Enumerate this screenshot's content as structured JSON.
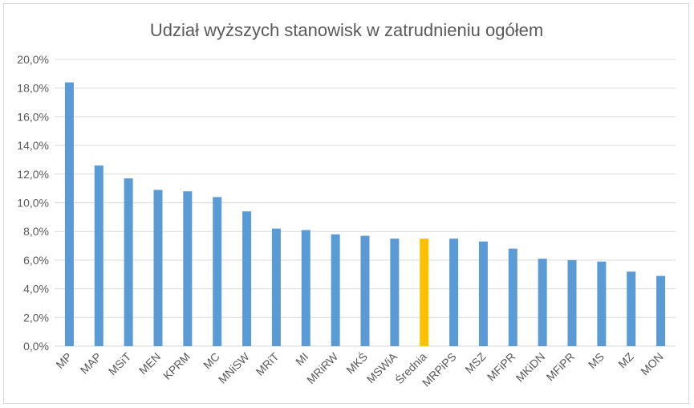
{
  "chart_data": {
    "type": "bar",
    "title": "Udział wyższych stanowisk w zatrudnieniu ogółem",
    "xlabel": "",
    "ylabel": "",
    "ylim": [
      0,
      20
    ],
    "yticks": [
      "0,0%",
      "2,0%",
      "4,0%",
      "6,0%",
      "8,0%",
      "10,0%",
      "12,0%",
      "14,0%",
      "16,0%",
      "18,0%",
      "20,0%"
    ],
    "grid": true,
    "legend": "none",
    "categories": [
      "MP",
      "MAP",
      "MSiT",
      "MEN",
      "KPRM",
      "MC",
      "MNiSW",
      "MRiT",
      "MI",
      "MRiRW",
      "MKŚ",
      "MSWiA",
      "Średnia",
      "MRPiPS",
      "MSZ",
      "MFiPR",
      "MKiDN",
      "MFiPR",
      "MS",
      "MZ",
      "MON"
    ],
    "values": [
      18.4,
      12.6,
      11.7,
      10.9,
      10.8,
      10.4,
      9.4,
      8.2,
      8.1,
      7.8,
      7.7,
      7.5,
      7.5,
      7.5,
      7.3,
      6.8,
      6.1,
      6.0,
      5.9,
      5.2,
      4.9
    ],
    "colors": {
      "bar": "#5b9bd5",
      "highlight": "#ffc000",
      "grid": "#d9d9d9",
      "text": "#595959"
    },
    "highlight_index": 12
  }
}
